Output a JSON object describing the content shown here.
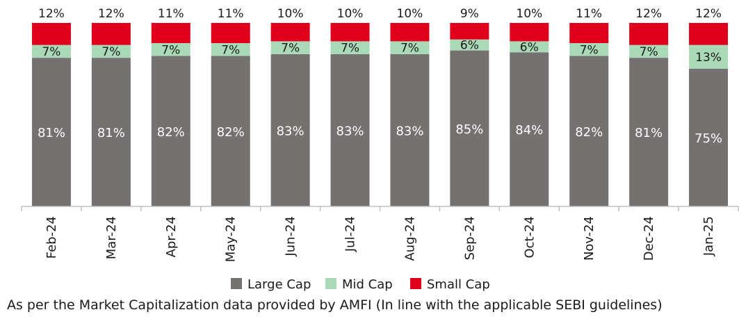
{
  "chart_data": {
    "type": "bar",
    "stacked": true,
    "categories": [
      "Feb-24",
      "Mar-24",
      "Apr-24",
      "May-24",
      "Jun-24",
      "Jul-24",
      "Aug-24",
      "Sep-24",
      "Oct-24",
      "Nov-24",
      "Dec-24",
      "Jan-25"
    ],
    "series": [
      {
        "name": "Large Cap",
        "color": "#767171",
        "values": [
          81,
          81,
          82,
          82,
          83,
          83,
          83,
          85,
          84,
          82,
          81,
          75
        ]
      },
      {
        "name": "Mid Cap",
        "color": "#a9d9b7",
        "values": [
          7,
          7,
          7,
          7,
          7,
          7,
          7,
          6,
          6,
          7,
          7,
          13
        ]
      },
      {
        "name": "Small Cap",
        "color": "#e0001b",
        "values": [
          12,
          12,
          11,
          11,
          10,
          10,
          10,
          9,
          10,
          11,
          12,
          12
        ]
      }
    ],
    "value_suffix": "%",
    "ylim": [
      0,
      100
    ],
    "legend_position": "bottom",
    "grid": false,
    "title": "",
    "xlabel": "",
    "ylabel": ""
  },
  "footnote": "As per the Market Capitalization data provided by AMFI (In line with the applicable SEBI guidelines)"
}
